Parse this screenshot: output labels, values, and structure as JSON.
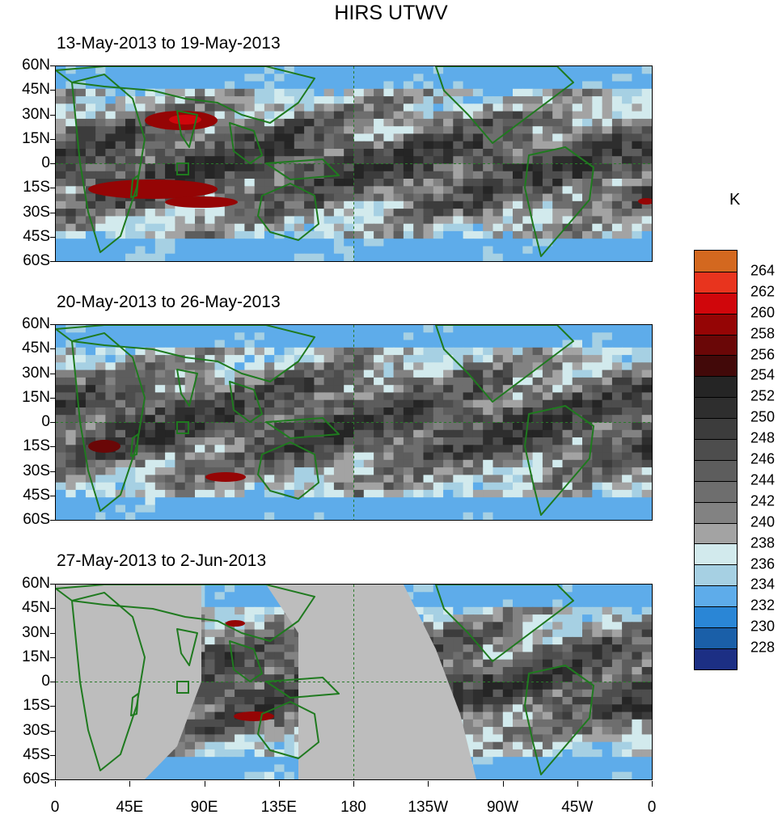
{
  "title": "HIRS UTWV",
  "units": "K",
  "panels": [
    {
      "label": "13-May-2013 to 19-May-2013"
    },
    {
      "label": "20-May-2013 to 26-May-2013"
    },
    {
      "label": "27-May-2013 to 2-Jun-2013"
    }
  ],
  "lat_labels": [
    "60N",
    "45N",
    "30N",
    "15N",
    "0",
    "15S",
    "30S",
    "45S",
    "60S"
  ],
  "lon_labels": [
    "0",
    "45E",
    "90E",
    "135E",
    "180",
    "135W",
    "90W",
    "45W",
    "0"
  ],
  "colorbar": {
    "labels": [
      "264",
      "262",
      "260",
      "258",
      "256",
      "254",
      "252",
      "250",
      "248",
      "246",
      "244",
      "242",
      "240",
      "238",
      "236",
      "234",
      "232",
      "230",
      "228"
    ],
    "colors": [
      "#d3681f",
      "#e8341e",
      "#d0060b",
      "#950505",
      "#6a0707",
      "#420909",
      "#252525",
      "#2e2e2e",
      "#3c3c3c",
      "#4d4d4d",
      "#5d5d5d",
      "#6e6e6e",
      "#828282",
      "#a3a3a3",
      "#d2eaed",
      "#a6d0e3",
      "#5eacea",
      "#2a86d6",
      "#1a5fa8",
      "#1c2f84"
    ]
  }
}
